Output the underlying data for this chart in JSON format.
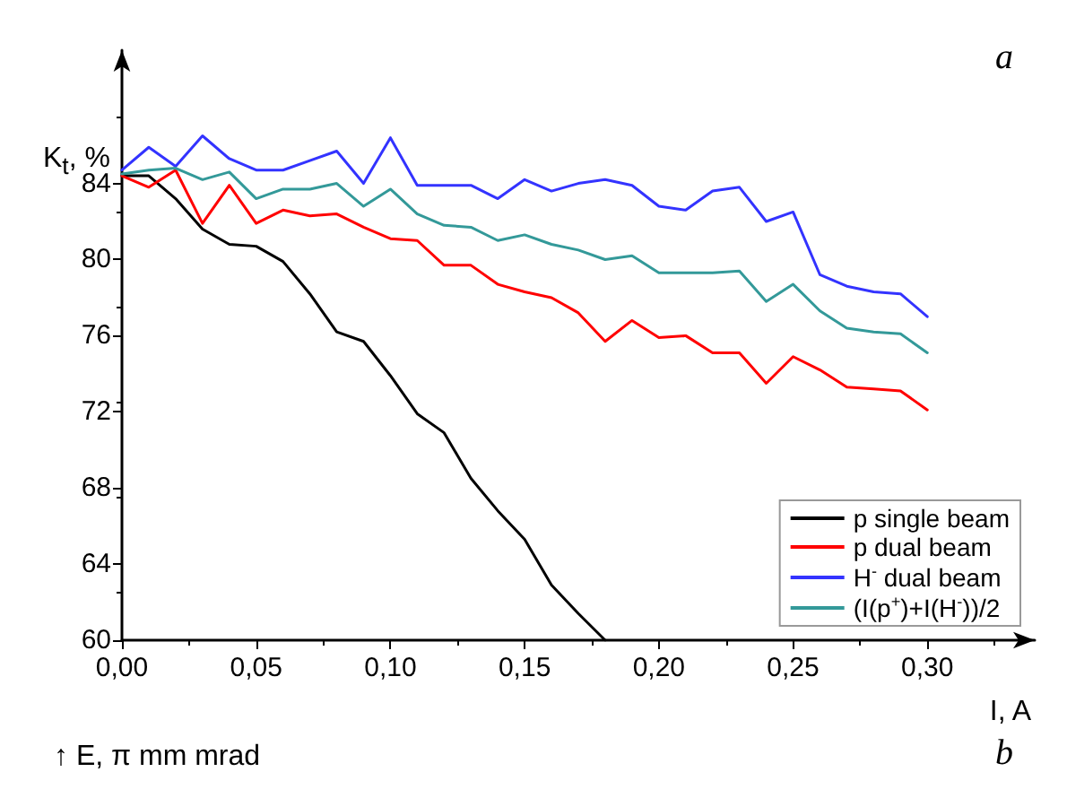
{
  "chart_data": {
    "type": "line",
    "xlabel": "I, A",
    "ylabel": "K$_{t}$, %",
    "annotations": [
      "a",
      "b",
      "↑ E, π mm mrad"
    ],
    "x": [
      0,
      0.01,
      0.02,
      0.03,
      0.04,
      0.05,
      0.06,
      0.07,
      0.08,
      0.09,
      0.1,
      0.11,
      0.12,
      0.13,
      0.14,
      0.15,
      0.16,
      0.17,
      0.18,
      0.19,
      0.2,
      0.21,
      0.22,
      0.23,
      0.24,
      0.25,
      0.26,
      0.27,
      0.28,
      0.29,
      0.3
    ],
    "series": [
      {
        "name": "p single beam",
        "color": "#000000",
        "values": [
          84.4,
          84.4,
          83.2,
          81.6,
          80.8,
          80.7,
          79.9,
          78.2,
          76.2,
          75.7,
          73.9,
          71.9,
          70.9,
          68.5,
          66.8,
          65.3,
          62.9,
          61.4,
          60.0,
          null,
          null,
          null,
          null,
          null,
          null,
          null,
          null,
          null,
          null,
          null,
          null
        ]
      },
      {
        "name": "p dual beam",
        "color": "#ff0000",
        "values": [
          84.4,
          83.8,
          84.7,
          81.9,
          83.9,
          81.9,
          82.6,
          82.3,
          82.4,
          81.7,
          81.1,
          81.0,
          79.7,
          79.7,
          78.7,
          78.3,
          78.0,
          77.2,
          75.7,
          76.8,
          75.9,
          76.0,
          75.1,
          75.1,
          73.5,
          74.9,
          74.2,
          73.3,
          73.2,
          73.1,
          72.1
        ]
      },
      {
        "name": "H$^{-}$ dual beam",
        "color": "#3333ff",
        "values": [
          84.7,
          85.9,
          84.9,
          86.5,
          85.3,
          84.7,
          84.7,
          85.2,
          85.7,
          84.0,
          86.4,
          83.9,
          83.9,
          83.9,
          83.2,
          84.2,
          83.6,
          84.0,
          84.2,
          83.9,
          82.8,
          82.6,
          83.6,
          83.8,
          82.0,
          82.5,
          79.2,
          78.6,
          78.3,
          78.2,
          77.0
        ]
      },
      {
        "name": "(I(p$^{+}$)+I(H$^{-}$))/2",
        "color": "#339999",
        "values": [
          84.5,
          84.7,
          84.8,
          84.2,
          84.6,
          83.2,
          83.7,
          83.7,
          84.0,
          82.8,
          83.7,
          82.4,
          81.8,
          81.7,
          81.0,
          81.3,
          80.8,
          80.5,
          80.0,
          80.2,
          79.3,
          79.3,
          79.3,
          79.4,
          77.8,
          78.7,
          77.3,
          76.4,
          76.2,
          76.1,
          75.1
        ]
      }
    ],
    "xlim": [
      0,
      0.34
    ],
    "xticks": [
      {
        "value": 0,
        "label": "0,00"
      },
      {
        "value": 0.05,
        "label": "0,05"
      },
      {
        "value": 0.1,
        "label": "0,10"
      },
      {
        "value": 0.15,
        "label": "0,15"
      },
      {
        "value": 0.2,
        "label": "0,20"
      },
      {
        "value": 0.25,
        "label": "0,25"
      },
      {
        "value": 0.3,
        "label": "0,30"
      }
    ],
    "ylim": [
      60,
      91
    ],
    "yticks": [
      60,
      64,
      68,
      72,
      76,
      80,
      84
    ],
    "grid": false,
    "legend": "bottom right",
    "marker": "none",
    "line_style": "solid"
  }
}
